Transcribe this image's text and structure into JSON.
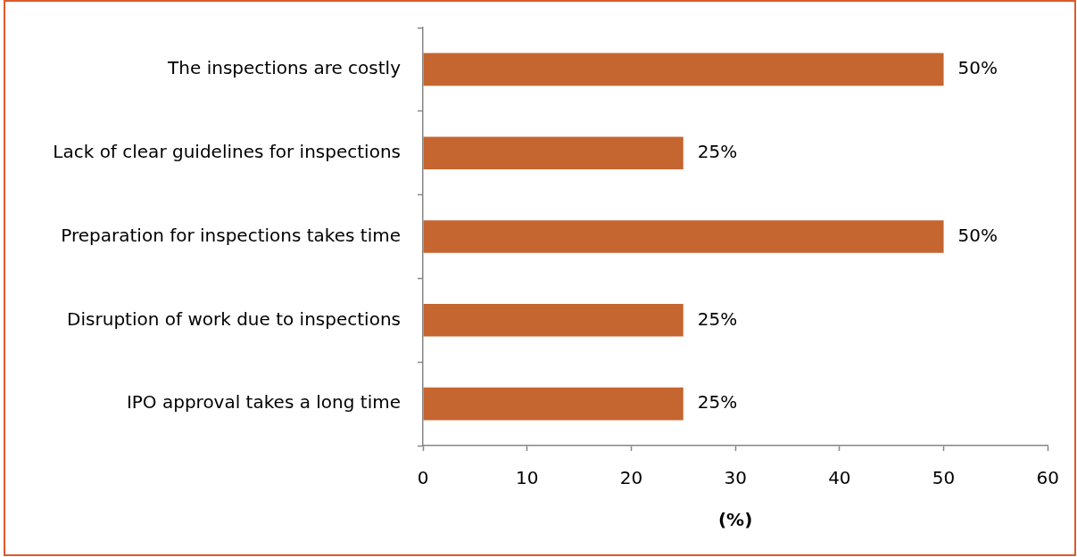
{
  "chart_data": {
    "type": "bar",
    "orientation": "horizontal",
    "xlabel": "(%)",
    "categories": [
      "The inspections are costly",
      "Lack of clear guidelines for inspections",
      "Preparation for inspections takes time",
      "Disruption of work due to inspections",
      "IPO approval takes a long time"
    ],
    "values": [
      50,
      25,
      50,
      25,
      25
    ],
    "color": "#c56530",
    "xlim": [
      0,
      60
    ],
    "xticks": [
      0,
      10,
      20,
      30,
      40,
      50,
      60
    ],
    "value_labels": [
      "50%",
      "25%",
      "50%",
      "25%",
      "25%"
    ]
  }
}
